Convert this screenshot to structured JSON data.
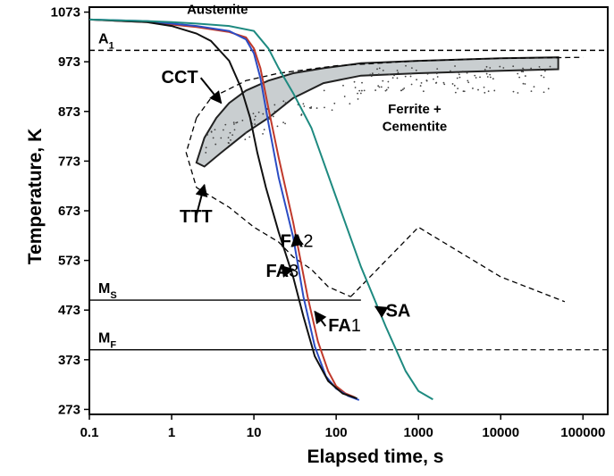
{
  "chart_data": {
    "type": "line",
    "x_scale": "log",
    "xlabel": "Elapsed time, s",
    "ylabel": "Temperature, K",
    "xlim": [
      0.1,
      200000
    ],
    "ylim": [
      263,
      1083
    ],
    "x_ticks": [
      {
        "value": 0.1,
        "label": "0.1"
      },
      {
        "value": 1,
        "label": "1"
      },
      {
        "value": 10,
        "label": "10"
      },
      {
        "value": 100,
        "label": "100"
      },
      {
        "value": 1000,
        "label": "1000"
      },
      {
        "value": 10000,
        "label": "10000"
      },
      {
        "value": 100000,
        "label": "100000"
      }
    ],
    "y_ticks": [
      {
        "value": 273,
        "label": "273"
      },
      {
        "value": 373,
        "label": "373"
      },
      {
        "value": 473,
        "label": "473"
      },
      {
        "value": 573,
        "label": "573"
      },
      {
        "value": 673,
        "label": "673"
      },
      {
        "value": 773,
        "label": "773"
      },
      {
        "value": 873,
        "label": "873"
      },
      {
        "value": 973,
        "label": "973"
      },
      {
        "value": 1073,
        "label": "1073"
      }
    ],
    "reference_lines": [
      {
        "name": "A1",
        "label_main": "A",
        "label_sub": "1",
        "y": 996,
        "style": "dashed"
      },
      {
        "name": "Ms",
        "label_main": "M",
        "label_sub": "S",
        "y": 493,
        "style": "solid",
        "x_end": 200
      },
      {
        "name": "Mf",
        "label_main": "M",
        "label_sub": "F",
        "y": 393,
        "style": "solid",
        "x_end": 200
      }
    ],
    "region_labels": [
      {
        "text": "Austenite",
        "x": 3.6,
        "y": 1080
      },
      {
        "text": "Ferrite +",
        "x": 900,
        "y": 880
      },
      {
        "text": "Cementite",
        "x": 900,
        "y": 845
      }
    ],
    "series": [
      {
        "name": "FA1",
        "color": "#c0392b",
        "x": [
          0.1,
          0.5,
          1,
          2,
          5,
          8,
          10,
          12,
          15,
          20,
          30,
          45,
          60,
          80,
          100,
          130,
          170
        ],
        "y": [
          1058,
          1053,
          1048,
          1043,
          1033,
          1022,
          1000,
          960,
          880,
          780,
          650,
          500,
          410,
          350,
          320,
          305,
          297
        ]
      },
      {
        "name": "FA2",
        "color": "#2b4cc4",
        "x": [
          0.1,
          0.5,
          1,
          2,
          5,
          8,
          10,
          12,
          15,
          20,
          30,
          40,
          55,
          75,
          100,
          140,
          190
        ],
        "y": [
          1058,
          1055,
          1050,
          1045,
          1035,
          1018,
          990,
          940,
          850,
          740,
          620,
          500,
          400,
          340,
          315,
          300,
          292
        ]
      },
      {
        "name": "FA3",
        "color": "#111111",
        "x": [
          0.1,
          0.5,
          1,
          2,
          3,
          5,
          7,
          9,
          11,
          14,
          20,
          30,
          40,
          55,
          80,
          120,
          180
        ],
        "y": [
          1058,
          1053,
          1045,
          1030,
          1015,
          975,
          920,
          860,
          790,
          720,
          630,
          540,
          460,
          380,
          330,
          305,
          295
        ]
      },
      {
        "name": "SA",
        "color": "#1e8a80",
        "x": [
          0.1,
          0.5,
          1,
          2,
          5,
          10,
          15,
          20,
          30,
          50,
          100,
          200,
          400,
          700,
          1000,
          1500
        ],
        "y": [
          1058,
          1055,
          1053,
          1050,
          1045,
          1035,
          1000,
          960,
          910,
          840,
          700,
          560,
          440,
          350,
          310,
          293
        ]
      }
    ],
    "ttt_curve": {
      "name": "TTT",
      "style": "dashed",
      "upper": {
        "x": [
          2,
          3,
          8,
          20,
          100,
          1000,
          10000,
          100000
        ],
        "y": [
          860,
          900,
          935,
          950,
          965,
          975,
          980,
          982
        ]
      },
      "nose": {
        "x": [
          2,
          1.5,
          2
        ],
        "y": [
          860,
          790,
          720
        ]
      },
      "lower": {
        "x": [
          2,
          5,
          10,
          20,
          30,
          50,
          80,
          150,
          1000,
          10000,
          60000
        ],
        "y": [
          720,
          680,
          640,
          610,
          580,
          555,
          520,
          500,
          640,
          540,
          490
        ]
      }
    },
    "cct_band": {
      "name": "CCT",
      "x": [
        2,
        2.5,
        3.5,
        5,
        8,
        15,
        30,
        70,
        200,
        1000,
        10000,
        50000,
        50000,
        10000,
        1000,
        200,
        70,
        30,
        15,
        8,
        4,
        2.5,
        2
      ],
      "y": [
        770,
        820,
        860,
        890,
        915,
        935,
        950,
        960,
        970,
        975,
        980,
        982,
        958,
        955,
        950,
        945,
        930,
        900,
        860,
        830,
        790,
        762,
        770
      ]
    },
    "annotations": [
      {
        "text": "CCT",
        "x": 0.75,
        "y": 930,
        "arrow_to": [
          4,
          890
        ]
      },
      {
        "text": "TTT",
        "x": 1.25,
        "y": 650,
        "arrow_to": [
          2.5,
          725
        ]
      },
      {
        "text": "FA",
        "num": "2",
        "x": 21,
        "y": 600,
        "arrow_to": [
          32,
          625
        ]
      },
      {
        "text": "FA",
        "num": "3",
        "x": 14,
        "y": 540,
        "arrow_to": [
          30,
          555
        ]
      },
      {
        "text": "FA",
        "num": "1",
        "x": 80,
        "y": 430,
        "arrow_to": [
          55,
          470
        ]
      },
      {
        "text": "SA",
        "x": 400,
        "y": 460,
        "arrow_to": [
          300,
          480
        ]
      }
    ]
  }
}
